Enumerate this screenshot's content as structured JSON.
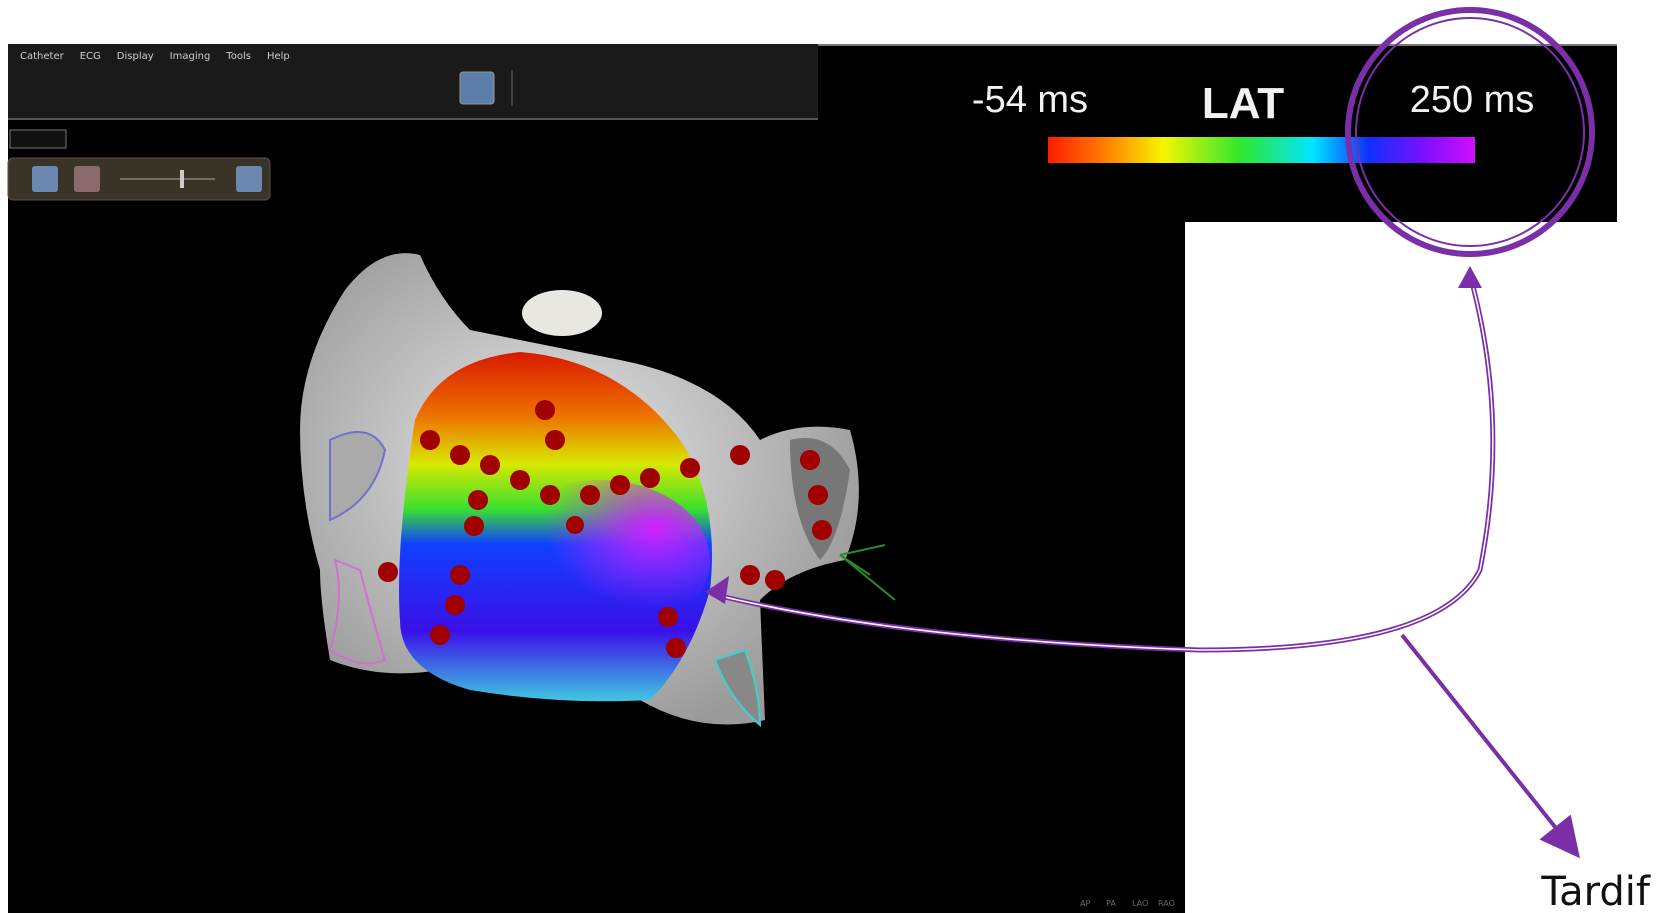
{
  "menu": {
    "items": [
      "Catheter",
      "ECG",
      "Display",
      "Imaging",
      "Tools",
      "Help"
    ]
  },
  "legend": {
    "min_label": "-54 ms",
    "title": "LAT",
    "max_label": "250 ms"
  },
  "annotation": {
    "label": "Tardif"
  },
  "view_buttons": [
    "AP",
    "PA",
    "LAO",
    "RAO"
  ]
}
